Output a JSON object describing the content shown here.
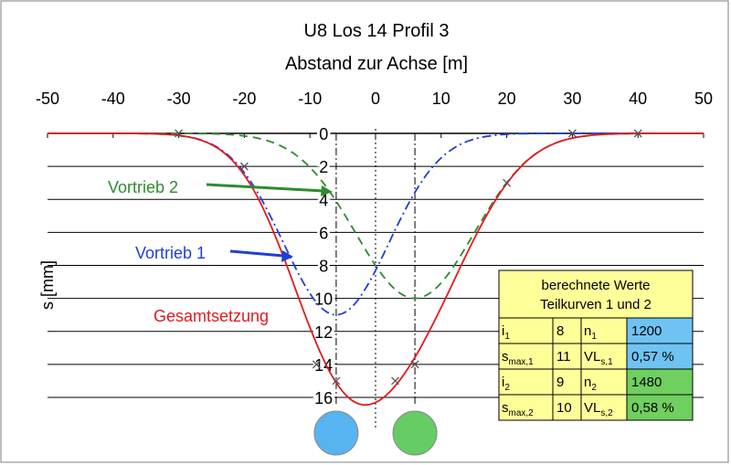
{
  "chart_data": {
    "type": "line",
    "title": "U8 Los 14 Profil 3",
    "subtitle": "Abstand zur Achse [m]",
    "ylabel": "s [mm]",
    "xlim": [
      -50,
      50
    ],
    "ylim": [
      0,
      18
    ],
    "y_inverted": true,
    "x_ticks": [
      -50,
      -40,
      -30,
      -20,
      -10,
      0,
      10,
      20,
      30,
      40,
      50
    ],
    "x_tick_labels": [
      "-50",
      "-40",
      "-30",
      "-20",
      "-10",
      "0",
      "10",
      "20",
      "30",
      "40",
      "50"
    ],
    "y_ticks": [
      0,
      2,
      4,
      6,
      8,
      10,
      12,
      14,
      16
    ],
    "y_tick_labels": [
      "0",
      "2",
      "4",
      "6",
      "8",
      "10",
      "12",
      "14",
      "16"
    ],
    "grid": true,
    "series": [
      {
        "name": "Vortrieb 1",
        "color": "#1f3fd6",
        "dash": "10,4,2,4",
        "axis": -6,
        "i": 8,
        "smax": 11
      },
      {
        "name": "Vortrieb 2",
        "color": "#2e8b2e",
        "dash": "9,6",
        "axis": 6,
        "i": 9,
        "smax": 10
      },
      {
        "name": "Gesamtsetzung",
        "color": "#e31a1c",
        "dash": "",
        "sum_of": [
          0,
          1
        ]
      }
    ],
    "measured_points": [
      {
        "x": -30,
        "y": 0
      },
      {
        "x": -20,
        "y": 2
      },
      {
        "x": -9,
        "y": 14
      },
      {
        "x": -6,
        "y": 15
      },
      {
        "x": 3,
        "y": 15
      },
      {
        "x": 6,
        "y": 14
      },
      {
        "x": 20,
        "y": 3
      },
      {
        "x": 30,
        "y": 0
      },
      {
        "x": 40,
        "y": 0
      }
    ],
    "tunnels": [
      {
        "axis": -6,
        "color": "#58b4f0"
      },
      {
        "axis": 6,
        "color": "#66cc66"
      }
    ],
    "table": {
      "header_line1": "berechnete Werte",
      "header_line2": "Teilkurven 1 und 2",
      "rows": [
        {
          "l1_base": "i",
          "l1_sub": "1",
          "v1": "8",
          "l2_base": "n",
          "l2_sub": "1",
          "v2": "1200",
          "color": "#6ec3f2"
        },
        {
          "l1_base": "s",
          "l1_sub": "max,1",
          "v1": "11",
          "l2_base": "VL",
          "l2_sub": "s,1",
          "v2": "0,57 %",
          "color": "#6ec3f2"
        },
        {
          "l1_base": "i",
          "l1_sub": "2",
          "v1": "9",
          "l2_base": "n",
          "l2_sub": "2",
          "v2": "1480",
          "color": "#6fcf5f"
        },
        {
          "l1_base": "s",
          "l1_sub": "max,2",
          "v1": "10",
          "l2_base": "VL",
          "l2_sub": "s,2",
          "v2": "0,58 %",
          "color": "#6fcf5f"
        }
      ],
      "header_color": "#ffff99"
    }
  }
}
